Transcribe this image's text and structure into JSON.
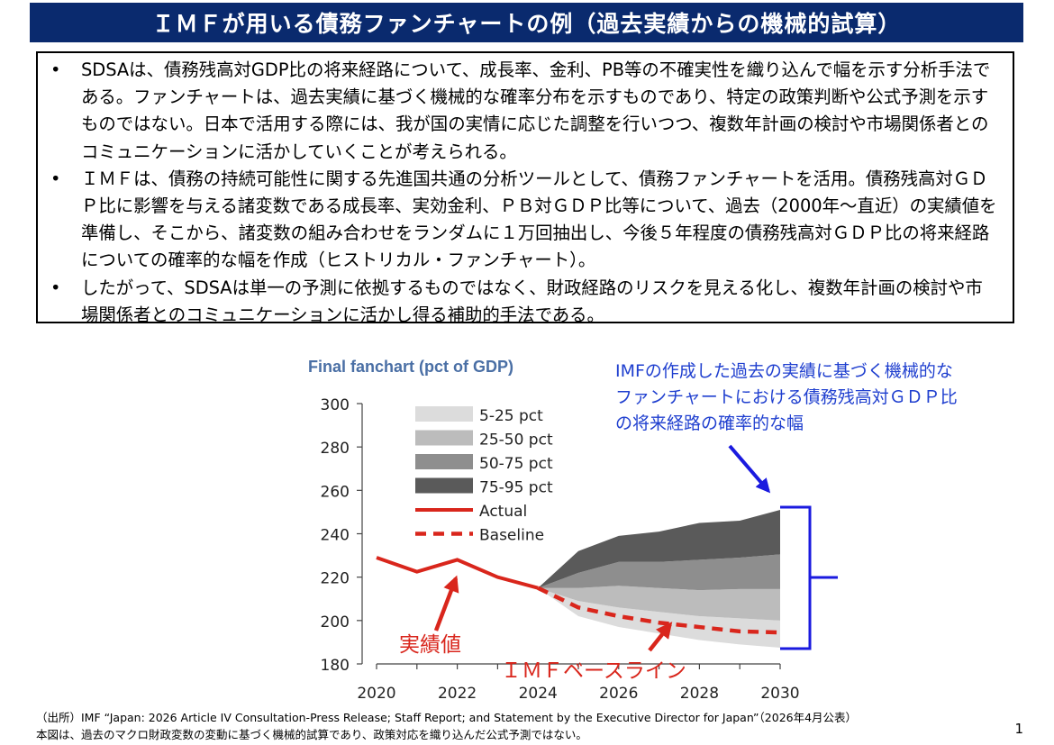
{
  "header": {
    "title": "ＩＭＦが用いる債務ファンチャートの例（過去実績からの機械的試算）"
  },
  "summary": {
    "bullets": [
      "SDSAは、債務残高対GDP比の将来経路について、成長率、金利、PB等の不確実性を織り込んで幅を示す分析手法である。ファンチャートは、過去実績に基づく機械的な確率分布を示すものであり、特定の政策判断や公式予測を示すものではない。日本で活用する際には、我が国の実情に応じた調整を行いつつ、複数年計画の検討や市場関係者とのコミュニケーションに活かしていくことが考えられる。",
      "ＩＭＦは、債務の持続可能性に関する先進国共通の分析ツールとして、債務ファンチャートを活用。債務残高対ＧＤＰ比に影響を与える諸変数である成長率、実効金利、ＰＢ対ＧＤＰ比等について、過去（2000年～直近）の実績値を準備し、そこから、諸変数の組み合わせをランダムに１万回抽出し、今後５年程度の債務残高対ＧＤＰ比の将来経路についての確率的な幅を作成（ヒストリカル・ファンチャート）。",
      "したがって、SDSAは単一の予測に依拠するものではなく、財政経路のリスクを見える化し、複数年計画の検討や市場関係者とのコミュニケーションに活かし得る補助的手法である。"
    ]
  },
  "chart_data": {
    "type": "area",
    "title": "Final fanchart (pct of GDP)",
    "xlabel": "",
    "ylabel": "",
    "xlim": [
      2020,
      2030
    ],
    "ylim": [
      180,
      300
    ],
    "x_ticks": [
      "2020",
      "2022",
      "2024",
      "2026",
      "2028",
      "2030"
    ],
    "y_ticks": [
      "180",
      "200",
      "220",
      "240",
      "260",
      "280",
      "300"
    ],
    "grid": false,
    "legend_position": "top-left",
    "legend": [
      "5-25 pct",
      "25-50 pct",
      "50-75 pct",
      "75-95 pct",
      "Actual",
      "Baseline"
    ],
    "actual": {
      "name": "Actual",
      "x": [
        2020,
        2021,
        2022,
        2023,
        2024
      ],
      "y": [
        229,
        222.5,
        228,
        220,
        215
      ],
      "color": "#d9261c"
    },
    "baseline": {
      "name": "Baseline",
      "x": [
        2024,
        2025,
        2026,
        2027,
        2028,
        2029,
        2030
      ],
      "y": [
        215,
        206,
        202,
        199,
        197,
        195,
        194.5
      ],
      "color": "#d9261c"
    },
    "fan": {
      "x": [
        2024,
        2025,
        2026,
        2027,
        2028,
        2029,
        2030
      ],
      "p5": [
        215,
        202,
        197,
        194,
        191,
        189,
        187.5
      ],
      "p25": [
        215,
        209,
        206,
        204,
        202,
        201,
        200
      ],
      "p50": [
        215,
        215,
        216,
        215,
        214,
        214.5,
        214.5
      ],
      "p75": [
        215,
        222,
        227,
        227,
        228,
        229,
        230.5
      ],
      "p95": [
        215,
        232,
        239,
        241,
        245,
        246,
        251
      ],
      "band_colors": [
        "#dcdcdc",
        "#bcbcbc",
        "#8e8e8e",
        "#5a5a5a"
      ]
    },
    "annotations": {
      "top_right": [
        "IMFの作成した過去の実績に基づく機械的な",
        "ファンチャートにおける債務残高対ＧＤＰ比",
        "の将来経路の確率的な幅"
      ],
      "actual_label": "実績値",
      "baseline_label": "ＩＭＦベースライン"
    }
  },
  "footer": {
    "source": "（出所）IMF “Japan: 2026 Article IV Consultation-Press Release; Staff Report; and Statement by the Executive Director for Japan”（2026年4月公表）",
    "note": "本図は、過去のマクロ財政変数の変動に基づく機械的試算であり、政策対応を織り込んだ公式予測ではない。",
    "page_number": "1"
  },
  "colors": {
    "title_bg": "#0a2a6e",
    "accent_red": "#d9261c",
    "accent_blue": "#1a1adf",
    "note_blue": "#1f3fcf"
  }
}
